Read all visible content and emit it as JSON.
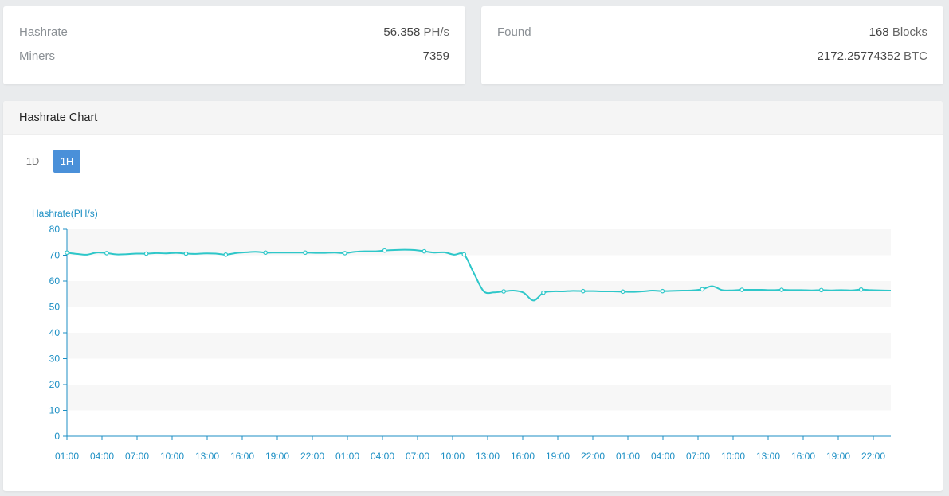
{
  "stats_left": {
    "hashrate_label": "Hashrate",
    "hashrate_value": "56.358",
    "hashrate_unit": "PH/s",
    "miners_label": "Miners",
    "miners_value": "7359"
  },
  "stats_right": {
    "found_label": "Found",
    "blocks_value": "168",
    "blocks_unit": "Blocks",
    "btc_value": "2172.25774352",
    "btc_unit": "BTC"
  },
  "chart_panel": {
    "title": "Hashrate Chart",
    "range_buttons": [
      "1D",
      "1H"
    ],
    "active_range": "1H"
  },
  "colors": {
    "line": "#2ec7c9",
    "axis": "#1c8fc4",
    "active_button": "#4a90d9"
  },
  "chart_data": {
    "type": "line",
    "ylabel": "Hashrate(PH/s)",
    "ylim": [
      0,
      80
    ],
    "yticks": [
      0,
      10,
      20,
      30,
      40,
      50,
      60,
      70,
      80
    ],
    "xtick_labels": [
      "01:00",
      "04:00",
      "07:00",
      "10:00",
      "13:00",
      "16:00",
      "19:00",
      "22:00",
      "01:00",
      "04:00",
      "07:00",
      "10:00",
      "13:00",
      "16:00",
      "19:00",
      "22:00",
      "01:00",
      "04:00",
      "07:00",
      "10:00",
      "13:00",
      "16:00",
      "19:00",
      "22:00"
    ],
    "grid": "alternating horizontal bands",
    "series": [
      {
        "values": [
          71,
          70.5,
          70.2,
          71,
          70.8,
          70.3,
          70.4,
          70.6,
          70.6,
          70.8,
          70.7,
          70.9,
          70.6,
          70.5,
          70.7,
          70.6,
          70.2,
          70.8,
          71.1,
          71.3,
          71,
          71,
          71,
          71,
          71,
          70.9,
          70.9,
          71,
          70.8,
          71.3,
          71.5,
          71.5,
          71.8,
          72,
          72.1,
          72,
          71.5,
          71,
          71.1,
          70.2,
          70.3,
          63,
          56,
          55.6,
          56,
          56.3,
          55.5,
          52.5,
          55.5,
          56,
          56,
          56.2,
          56.1,
          56.1,
          56,
          56,
          55.9,
          55.8,
          56,
          56.3,
          56.1,
          56.2,
          56.3,
          56.4,
          56.8,
          58,
          56.5,
          56.4,
          56.6,
          56.6,
          56.6,
          56.5,
          56.6,
          56.5,
          56.5,
          56.4,
          56.5,
          56.4,
          56.5,
          56.4,
          56.7,
          56.5,
          56.4,
          56.3
        ]
      }
    ]
  }
}
